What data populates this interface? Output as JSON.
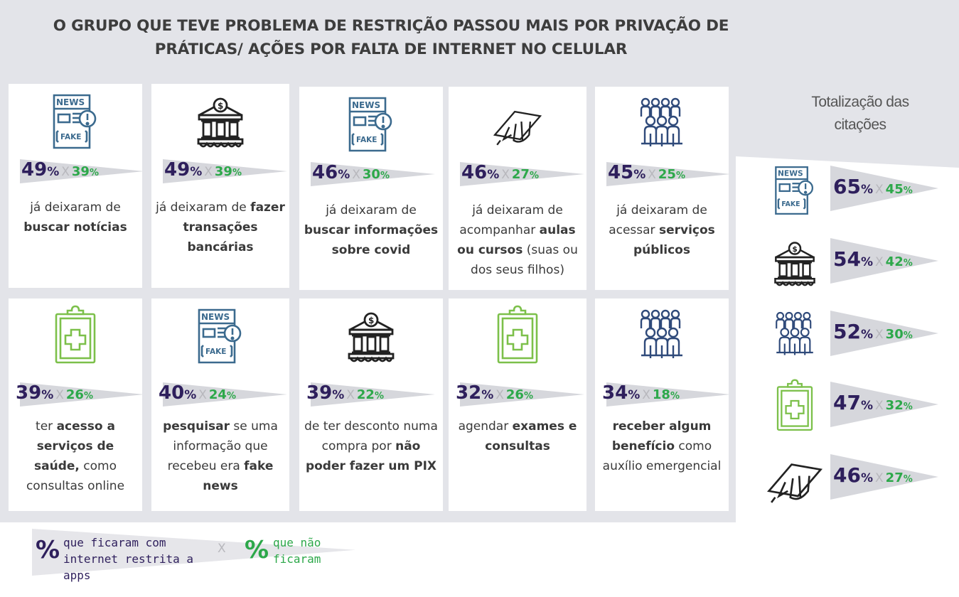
{
  "title": {
    "line1": "O GRUPO QUE TEVE PROBLEMA DE RESTRIÇÃO PASSOU MAIS POR PRIVAÇÃO DE",
    "line2": "PRÁTICAS/ AÇÕES POR FALTA DE INTERNET NO CELULAR"
  },
  "cards": [
    {
      "icon": "fake-news-icon",
      "restricted": "49",
      "not_restricted": "39",
      "desc_html": "já deixaram de <b>buscar notícias</b>"
    },
    {
      "icon": "bank-icon",
      "restricted": "49",
      "not_restricted": "39",
      "desc_html": "já deixaram de <b>fazer transações bancárias</b>"
    },
    {
      "icon": "fake-news-icon",
      "restricted": "46",
      "not_restricted": "30",
      "desc_html": "já deixaram de <b>buscar informações sobre covid</b>"
    },
    {
      "icon": "graduation-cap-icon",
      "restricted": "46",
      "not_restricted": "27",
      "desc_html": "já deixaram de acompanhar <b>aulas ou cursos</b> (suas ou dos seus filhos)"
    },
    {
      "icon": "people-group-icon",
      "restricted": "45",
      "not_restricted": "25",
      "desc_html": "já deixaram de acessar <b>serviços públicos</b>"
    },
    {
      "icon": "medical-clipboard-icon",
      "restricted": "39",
      "not_restricted": "26",
      "desc_html": "ter <b>acesso a serviços de saúde,</b> como consultas online"
    },
    {
      "icon": "fake-news-icon",
      "restricted": "40",
      "not_restricted": "24",
      "desc_html": "<b>pesquisar</b> se uma informação que recebeu era <b>fake news</b>"
    },
    {
      "icon": "bank-icon",
      "restricted": "39",
      "not_restricted": "22",
      "desc_html": "de ter desconto numa compra por <b>não poder fazer um PIX</b>"
    },
    {
      "icon": "medical-clipboard-icon",
      "restricted": "32",
      "not_restricted": "26",
      "desc_html": "agendar <b>exames e consultas</b>"
    },
    {
      "icon": "people-group-icon",
      "restricted": "34",
      "not_restricted": "18",
      "desc_html": "<b>receber algum benefício</b> como auxílio emergencial"
    }
  ],
  "percent_sign": "%",
  "separator": "X",
  "side": {
    "title": "Totalização das citações",
    "items": [
      {
        "icon": "fake-news-icon",
        "restricted": "65",
        "not_restricted": "45"
      },
      {
        "icon": "bank-icon",
        "restricted": "54",
        "not_restricted": "42"
      },
      {
        "icon": "people-group-icon",
        "restricted": "52",
        "not_restricted": "30"
      },
      {
        "icon": "medical-clipboard-icon",
        "restricted": "47",
        "not_restricted": "32"
      },
      {
        "icon": "graduation-cap-icon",
        "restricted": "46",
        "not_restricted": "27"
      }
    ]
  },
  "legend": {
    "pct": "%",
    "restricted_label": "que ficaram com internet restrita a apps",
    "x": "X",
    "not_restricted_label": "que não ficaram"
  },
  "colors": {
    "restricted": "#2e1f5c",
    "not_restricted": "#2da84a",
    "news_icon": "#3b6a8e",
    "people_icon": "#2f4a7a",
    "health_icon": "#7cc04a",
    "dark_icon": "#222222"
  }
}
